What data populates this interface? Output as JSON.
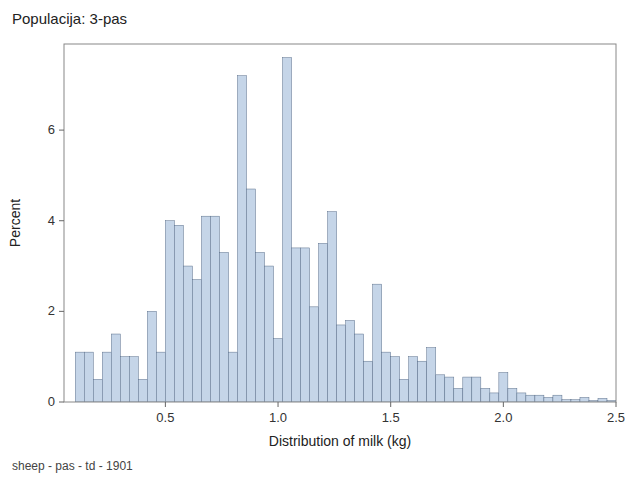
{
  "chart_data": {
    "type": "histogram",
    "title": "Populacija: 3-pas",
    "xlabel": "Distribution of milk (kg)",
    "ylabel": "Percent",
    "footnote": "sheep - pas - td - 1901",
    "color": "#c5d5e8",
    "bins": [
      0.1,
      0.14,
      0.18,
      0.22,
      0.26,
      0.3,
      0.34,
      0.38,
      0.42,
      0.46,
      0.5,
      0.54,
      0.58,
      0.62,
      0.66,
      0.7,
      0.74,
      0.78,
      0.82,
      0.86,
      0.9,
      0.94,
      0.98,
      1.02,
      1.06,
      1.1,
      1.14,
      1.18,
      1.22,
      1.26,
      1.3,
      1.34,
      1.38,
      1.42,
      1.46,
      1.5,
      1.54,
      1.58,
      1.62,
      1.66,
      1.7,
      1.74,
      1.78,
      1.82,
      1.86,
      1.9,
      1.94,
      1.98,
      2.02,
      2.06,
      2.1,
      2.14,
      2.18,
      2.22,
      2.26,
      2.3,
      2.34,
      2.38,
      2.42,
      2.46,
      2.5
    ],
    "values": [
      1.1,
      1.1,
      0.5,
      1.1,
      1.5,
      1.0,
      1.0,
      0.5,
      2.0,
      1.1,
      4.0,
      3.9,
      3.0,
      2.7,
      4.1,
      4.1,
      3.3,
      1.1,
      7.2,
      4.7,
      3.3,
      3.0,
      1.4,
      7.6,
      3.4,
      3.4,
      2.1,
      3.5,
      4.2,
      1.7,
      1.8,
      1.5,
      0.9,
      2.6,
      1.1,
      1.0,
      0.5,
      1.0,
      0.9,
      1.2,
      0.6,
      0.55,
      0.3,
      0.55,
      0.55,
      0.3,
      0.2,
      0.65,
      0.3,
      0.2,
      0.15,
      0.15,
      0.1,
      0.15,
      0.05,
      0.05,
      0.1,
      0.03,
      0.08,
      0.03
    ],
    "xlim": [
      0.05,
      2.5
    ],
    "ylim": [
      0,
      7.9
    ],
    "xticks": [
      0.5,
      {
        "value": 1,
        "label": "1.0"
      },
      {
        "value": 1.5,
        "label": "1.5"
      },
      {
        "value": 2,
        "label": "2.0"
      },
      2.5
    ],
    "yticks": [
      0,
      2,
      4,
      6
    ]
  }
}
